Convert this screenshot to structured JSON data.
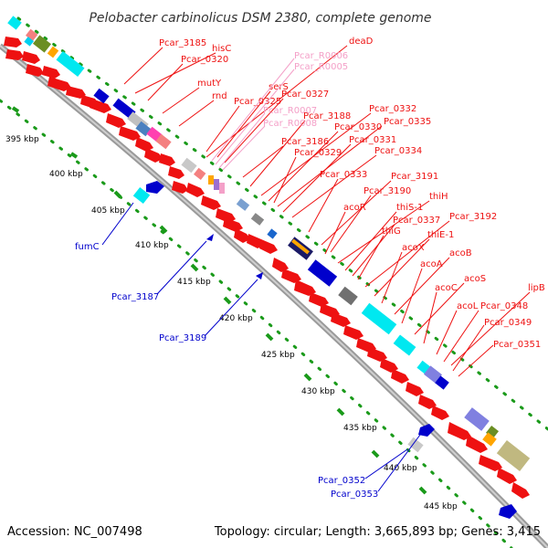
{
  "header": {
    "title": "Pelobacter carbinolicus DSM 2380, complete genome"
  },
  "footer": {
    "accession": "Accession: NC_007498",
    "topology": "Topology: circular; Length: 3,665,893 bp; Genes: 3,415"
  },
  "colors": {
    "red": "#ee1111",
    "blue": "#0000cc",
    "pink": "#f4a0c8",
    "cyan": "#00e8f0",
    "grey": "#8a8a8a"
  },
  "scale_labels": [
    "395 kbp",
    "400 kbp",
    "405 kbp",
    "410 kbp",
    "415 kbp",
    "420 kbp",
    "425 kbp",
    "430 kbp",
    "435 kbp",
    "440 kbp",
    "445 kbp"
  ],
  "red_labels": [
    "Pcar_3185",
    "hisC",
    "Pcar_0320",
    "mutY",
    "rnd",
    "Pcar_0325",
    "serS",
    "Pcar_0327",
    "Pcar_3188",
    "Pcar_0332",
    "Pcar_0330",
    "Pcar_0335",
    "Pcar_3186",
    "Pcar_0331",
    "Pcar_0329",
    "Pcar_0334",
    "Pcar_0333",
    "Pcar_3191",
    "Pcar_3190",
    "thiH",
    "acoR",
    "thiS-1",
    "Pcar_0337",
    "Pcar_3192",
    "thiG",
    "thiE-1",
    "acoX",
    "acoB",
    "acoA",
    "acoS",
    "acoC",
    "lipB",
    "acoL",
    "Pcar_0348",
    "Pcar_0349",
    "Pcar_0351",
    "deaD"
  ],
  "pink_labels": [
    "Pcar_R0006",
    "Pcar_R0005",
    "Pcar_R0007",
    "Pcar_R0008"
  ],
  "blue_labels": [
    "fumC",
    "Pcar_3187",
    "Pcar_3189",
    "Pcar_0352",
    "Pcar_0353"
  ]
}
